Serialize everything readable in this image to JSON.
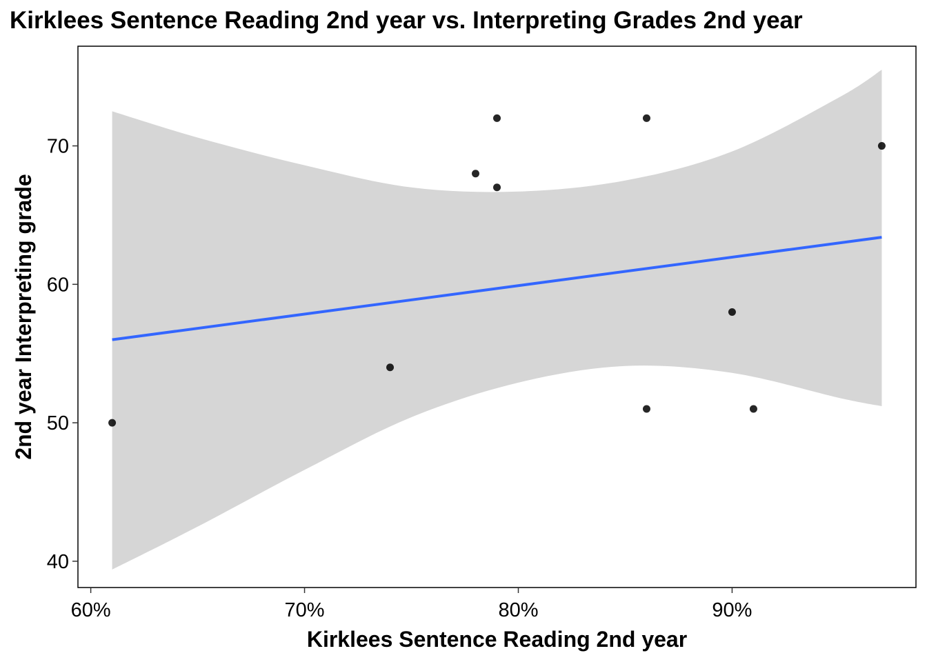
{
  "chart_data": {
    "type": "scatter",
    "title": "Kirklees Sentence Reading 2nd year vs. Interpreting Grades 2nd year",
    "xlabel": "Kirklees Sentence Reading 2nd year",
    "ylabel": "2nd year Interpreting grade",
    "xlim": [
      0.594,
      0.986
    ],
    "ylim": [
      38.1,
      77.2
    ],
    "xticks": [
      0.6,
      0.7,
      0.8,
      0.9
    ],
    "xtick_labels": [
      "60%",
      "70%",
      "80%",
      "90%"
    ],
    "yticks": [
      40,
      50,
      60,
      70
    ],
    "ytick_labels": [
      "40",
      "50",
      "60",
      "70"
    ],
    "grid": false,
    "points": [
      {
        "x": 0.61,
        "y": 50
      },
      {
        "x": 0.74,
        "y": 54
      },
      {
        "x": 0.78,
        "y": 68
      },
      {
        "x": 0.79,
        "y": 72
      },
      {
        "x": 0.79,
        "y": 67
      },
      {
        "x": 0.86,
        "y": 72
      },
      {
        "x": 0.86,
        "y": 51
      },
      {
        "x": 0.9,
        "y": 58
      },
      {
        "x": 0.91,
        "y": 51
      },
      {
        "x": 0.97,
        "y": 70
      }
    ],
    "trend_line": {
      "method": "linear fit",
      "color": "#3366FF",
      "x": [
        0.61,
        0.97
      ],
      "y": [
        56.0,
        63.4
      ]
    },
    "confidence_band": {
      "color": "#d6d6d6",
      "x": [
        0.61,
        0.65,
        0.7,
        0.75,
        0.8,
        0.85,
        0.9,
        0.95,
        0.97
      ],
      "upper": [
        72.5,
        70.6,
        68.6,
        67.0,
        66.7,
        67.5,
        69.6,
        73.5,
        75.5
      ],
      "lower": [
        39.4,
        42.5,
        46.6,
        50.4,
        52.9,
        54.1,
        53.6,
        51.8,
        51.2
      ]
    },
    "point_color": "#000000"
  }
}
